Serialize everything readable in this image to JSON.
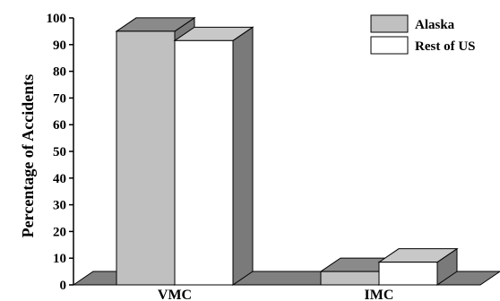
{
  "chart_data": {
    "type": "bar",
    "title": "",
    "xlabel": "",
    "ylabel": "Percentage of Accidents",
    "ylim": [
      0,
      100
    ],
    "yticks": [
      0,
      10,
      20,
      30,
      40,
      50,
      60,
      70,
      80,
      90,
      100
    ],
    "categories": [
      "VMC",
      "IMC"
    ],
    "series": [
      {
        "name": "Alaska",
        "values": [
          95,
          5
        ],
        "color": "#c0c0c0"
      },
      {
        "name": "Rest of US",
        "values": [
          91.5,
          8.5
        ],
        "color": "#ffffff"
      }
    ],
    "grid": false,
    "legend_position": "top-right",
    "style": "3d",
    "floor_color": "#808080"
  }
}
